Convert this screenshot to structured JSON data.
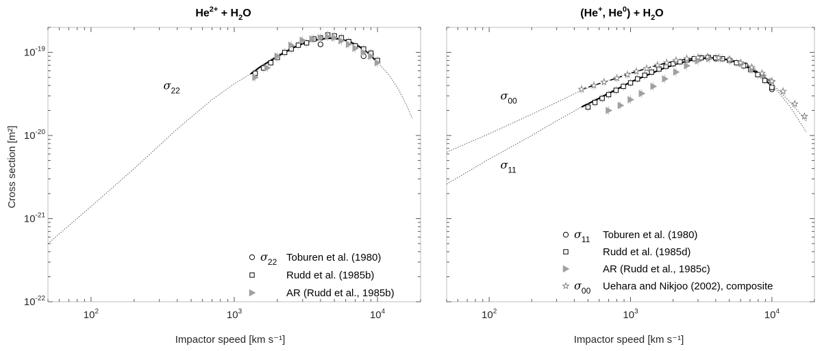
{
  "chart_data": [
    {
      "type": "scatter",
      "title": "He²⁺ + H₂O",
      "title_parts": {
        "main": "He",
        "sup": "2+",
        "mid": " + H",
        "sub": "2",
        "end": "O"
      },
      "xlabel": "Impactor speed [km s⁻¹]",
      "ylabel": "Cross section [m²]",
      "xscale": "log",
      "yscale": "log",
      "xlim": [
        50,
        20000
      ],
      "ylim": [
        1e-22,
        2e-19
      ],
      "grid": false,
      "legend_position": "bottom-right",
      "x_tick_labels": [
        {
          "base": "10",
          "exp": "2"
        },
        {
          "base": "10",
          "exp": "3"
        },
        {
          "base": "10",
          "exp": "4"
        }
      ],
      "y_tick_labels": [
        {
          "base": "10",
          "exp": "-19"
        },
        {
          "base": "10",
          "exp": "-20"
        },
        {
          "base": "10",
          "exp": "-21"
        },
        {
          "base": "10",
          "exp": "-22"
        }
      ],
      "curve_labels": [
        {
          "text": "σ",
          "sub": "22",
          "x": 320,
          "y": 3.6e-20
        }
      ],
      "series": [
        {
          "name": "Toburen et al. (1980)",
          "sigma_label": "σ",
          "sigma_sub": "22",
          "marker": "circle",
          "x": [
            4000,
            8000,
            9000
          ],
          "y": [
            1.25e-19,
            9e-20,
            9.6e-20
          ]
        },
        {
          "name": "Rudd et al. (1985b)",
          "marker": "square",
          "x": [
            1400,
            1600,
            1800,
            2000,
            2250,
            2500,
            2800,
            3200,
            3600,
            4000,
            4500,
            5000,
            5600,
            6300,
            7000,
            8000,
            9000,
            10000
          ],
          "y": [
            5.6e-20,
            6.5e-20,
            7.5e-20,
            8.7e-20,
            1e-19,
            1.1e-19,
            1.22e-19,
            1.3e-19,
            1.45e-19,
            1.5e-19,
            1.62e-19,
            1.58e-19,
            1.5e-19,
            1.35e-19,
            1.2e-19,
            1.1e-19,
            9.8e-20,
            8e-20
          ]
        },
        {
          "name": "AR (Rudd et al., 1985b)",
          "marker": "triangle",
          "x": [
            1400,
            1700,
            2000,
            2500,
            3000,
            3500,
            4000,
            4500,
            5000,
            5600,
            6300,
            7000,
            8000,
            9000,
            10000
          ],
          "y": [
            5e-20,
            6.5e-20,
            9e-20,
            1.22e-19,
            1.4e-19,
            1.45e-19,
            1.5e-19,
            1.55e-19,
            1.5e-19,
            1.38e-19,
            1.25e-19,
            1.12e-19,
            1e-19,
            9e-20,
            7.5e-20
          ]
        }
      ],
      "fit_solid": {
        "x": [
          1300,
          1500,
          1800,
          2200,
          2700,
          3300,
          4000,
          4700,
          5500,
          6500,
          7500,
          8500,
          10000
        ],
        "y": [
          5.5e-20,
          6.6e-20,
          8e-20,
          9.8e-20,
          1.18e-19,
          1.35e-19,
          1.45e-19,
          1.48e-19,
          1.45e-19,
          1.33e-19,
          1.17e-19,
          1e-19,
          7.6e-20
        ]
      },
      "fit_dotted": {
        "x": [
          50,
          100,
          200,
          400,
          700,
          1000,
          1300,
          2000,
          3000,
          4500,
          6000,
          8000,
          10000,
          12000,
          14000,
          16000,
          17500
        ],
        "y": [
          5e-22,
          1.4e-21,
          4e-21,
          1.2e-20,
          2.7e-20,
          4.2e-20,
          5.5e-20,
          9.3e-20,
          1.3e-19,
          1.48e-19,
          1.4e-19,
          1.12e-19,
          7.6e-20,
          5.4e-20,
          3.6e-20,
          2.3e-20,
          1.6e-20
        ]
      }
    },
    {
      "type": "scatter",
      "title": "(He⁺, He⁰) + H₂O",
      "title_parts": {
        "a": "(He",
        "a_sup": "+",
        "b": ", He",
        "b_sup": "0",
        "c": ") + H",
        "c_sub": "2",
        "d": "O"
      },
      "xlabel": "Impactor speed [km s⁻¹]",
      "xscale": "log",
      "yscale": "log",
      "xlim": [
        50,
        20000
      ],
      "ylim": [
        1e-22,
        2e-19
      ],
      "grid": false,
      "legend_position": "bottom-right",
      "x_tick_labels": [
        {
          "base": "10",
          "exp": "2"
        },
        {
          "base": "10",
          "exp": "3"
        },
        {
          "base": "10",
          "exp": "4"
        }
      ],
      "curve_labels": [
        {
          "text": "σ",
          "sub": "00",
          "x": 120,
          "y": 2.7e-20
        },
        {
          "text": "σ",
          "sub": "11",
          "x": 120,
          "y": 4e-21
        }
      ],
      "series": [
        {
          "name": "Toburen et al. (1980)",
          "sigma_label": "σ",
          "sigma_sub": "11",
          "marker": "circle",
          "x": [
            4000,
            6500,
            10000
          ],
          "y": [
            8.4e-20,
            7e-20,
            3.6e-20
          ]
        },
        {
          "name": "Rudd et al. (1985d)",
          "marker": "square",
          "x": [
            500,
            560,
            630,
            700,
            790,
            890,
            1000,
            1120,
            1260,
            1410,
            1590,
            1780,
            2000,
            2240,
            2510,
            2820,
            3160,
            3550,
            4000,
            4470,
            5010,
            5620,
            6310,
            7080,
            7940,
            8910,
            10000
          ],
          "y": [
            2.2e-20,
            2.5e-20,
            2.8e-20,
            3.1e-20,
            3.5e-20,
            3.9e-20,
            4.3e-20,
            4.8e-20,
            5.3e-20,
            5.8e-20,
            6.3e-20,
            6.8e-20,
            7.3e-20,
            7.7e-20,
            8.1e-20,
            8.4e-20,
            8.6e-20,
            8.7e-20,
            8.6e-20,
            8.4e-20,
            8e-20,
            7.5e-20,
            6.9e-20,
            6.2e-20,
            5.4e-20,
            4.6e-20,
            3.8e-20
          ]
        },
        {
          "name": "AR (Rudd et al., 1985c)",
          "marker": "triangle",
          "x": [
            700,
            850,
            1000,
            1200,
            1450,
            1750,
            2100,
            2500,
            3000,
            3600,
            4300,
            5100,
            6100,
            7300,
            8700,
            10000
          ],
          "y": [
            2e-20,
            2.3e-20,
            2.7e-20,
            3.2e-20,
            3.9e-20,
            4.8e-20,
            5.8e-20,
            6.9e-20,
            7.9e-20,
            8.4e-20,
            8.5e-20,
            8.1e-20,
            7.3e-20,
            6.3e-20,
            5.3e-20,
            4.5e-20
          ]
        },
        {
          "name": "Uehara and Nikjoo (2002), composite",
          "sigma_label": "σ",
          "sigma_sub": "00",
          "marker": "star",
          "x": [
            450,
            550,
            650,
            800,
            950,
            1100,
            1300,
            1550,
            1800,
            2100,
            2500,
            3000,
            3500,
            4200,
            5000,
            6000,
            7200,
            8500,
            10000,
            12000,
            14500,
            17000
          ],
          "y": [
            3.6e-20,
            4e-20,
            4.4e-20,
            4.9e-20,
            5.4e-20,
            5.9e-20,
            6.4e-20,
            7e-20,
            7.5e-20,
            8e-20,
            8.4e-20,
            8.7e-20,
            8.8e-20,
            8.6e-20,
            8.2e-20,
            7.5e-20,
            6.6e-20,
            5.6e-20,
            4.5e-20,
            3.4e-20,
            2.4e-20,
            1.7e-20
          ]
        }
      ],
      "fit_solid_11": {
        "x": [
          450,
          600,
          800,
          1000,
          1300,
          1700,
          2200,
          2800,
          3500,
          4200,
          5000,
          6000,
          7000,
          8500,
          10000
        ],
        "y": [
          2.2e-20,
          2.8e-20,
          3.6e-20,
          4.4e-20,
          5.3e-20,
          6.4e-20,
          7.4e-20,
          8.2e-20,
          8.6e-20,
          8.5e-20,
          8.1e-20,
          7.3e-20,
          6.4e-20,
          5.1e-20,
          3.9e-20
        ]
      },
      "fit_dashed_00": {
        "x": [
          450,
          600,
          800,
          1000,
          1300,
          1700,
          2200,
          2800,
          3500,
          4200,
          5000,
          6000,
          7000,
          8500,
          10000
        ],
        "y": [
          3.6e-20,
          4.2e-20,
          4.9e-20,
          5.6e-20,
          6.4e-20,
          7.3e-20,
          8e-20,
          8.5e-20,
          8.7e-20,
          8.6e-20,
          8.2e-20,
          7.4e-20,
          6.6e-20,
          5.4e-20,
          4.3e-20
        ]
      },
      "fit_dotted_00": {
        "x": [
          50,
          100,
          200,
          300,
          450,
          700,
          1000,
          1500,
          2200,
          3000,
          4000,
          5500,
          7000,
          9000,
          11000,
          13500,
          16000,
          17500
        ],
        "y": [
          6.3e-21,
          1.05e-20,
          1.8e-20,
          2.5e-20,
          3.5e-20,
          4.6e-20,
          5.7e-20,
          7e-20,
          8.1e-20,
          8.6e-20,
          8.6e-20,
          7.8e-20,
          6.6e-20,
          5e-20,
          3.6e-20,
          2.5e-20,
          1.8e-20,
          1.5e-20
        ]
      },
      "fit_dotted_11": {
        "x": [
          50,
          100,
          200,
          300,
          450,
          700,
          1000,
          1500,
          2200,
          3000,
          4000,
          5500,
          7000,
          9000,
          11000,
          13500,
          16000,
          17500
        ],
        "y": [
          2.6e-21,
          5.2e-21,
          1e-20,
          1.5e-20,
          2.2e-20,
          3.3e-20,
          4.4e-20,
          5.9e-20,
          7.4e-20,
          8.3e-20,
          8.6e-20,
          8e-20,
          6.8e-20,
          5e-20,
          3.4e-20,
          2.2e-20,
          1.4e-20,
          1.1e-20
        ]
      }
    }
  ]
}
